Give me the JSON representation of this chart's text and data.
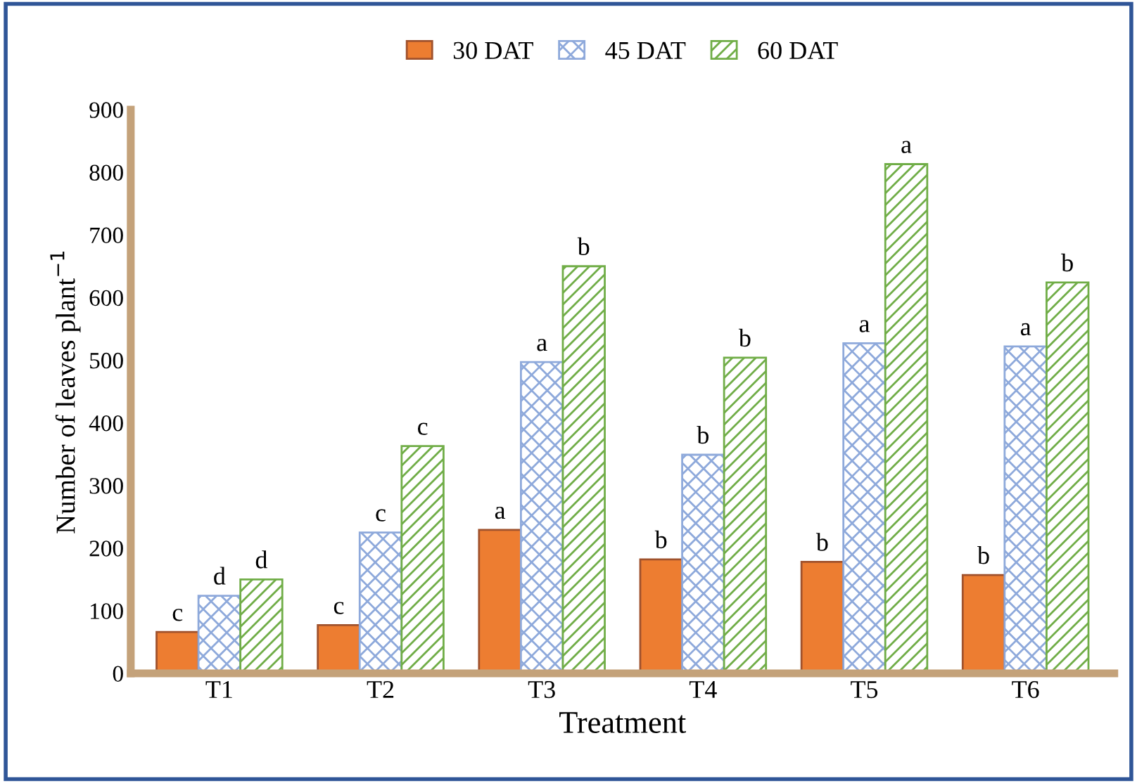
{
  "chart_data": {
    "type": "bar",
    "xlabel": "Treatment",
    "ylabel": "Number of leaves plant$^{−1}$",
    "categories": [
      "T1",
      "T2",
      "T3",
      "T4",
      "T5",
      "T6"
    ],
    "series": [
      {
        "name": "30 DAT",
        "color": "#ed7d31",
        "values": [
          66,
          77,
          229,
          182,
          178,
          157
        ],
        "value_labels": [
          "c",
          "c",
          "a",
          "b",
          "b",
          "b"
        ]
      },
      {
        "name": "45 DAT",
        "color": "#8ea9db",
        "values": [
          124,
          225,
          497,
          349,
          527,
          522
        ],
        "value_labels": [
          "d",
          "c",
          "a",
          "b",
          "a",
          "a"
        ]
      },
      {
        "name": "60 DAT",
        "color": "#70ad47",
        "values": [
          150,
          363,
          650,
          504,
          813,
          624
        ],
        "value_labels": [
          "d",
          "c",
          "b",
          "b",
          "a",
          "b"
        ]
      }
    ],
    "ylim": [
      0,
      900
    ],
    "yticks": [
      0,
      100,
      200,
      300,
      400,
      500,
      600,
      700,
      800,
      900
    ],
    "legend": "top",
    "grid": false
  }
}
